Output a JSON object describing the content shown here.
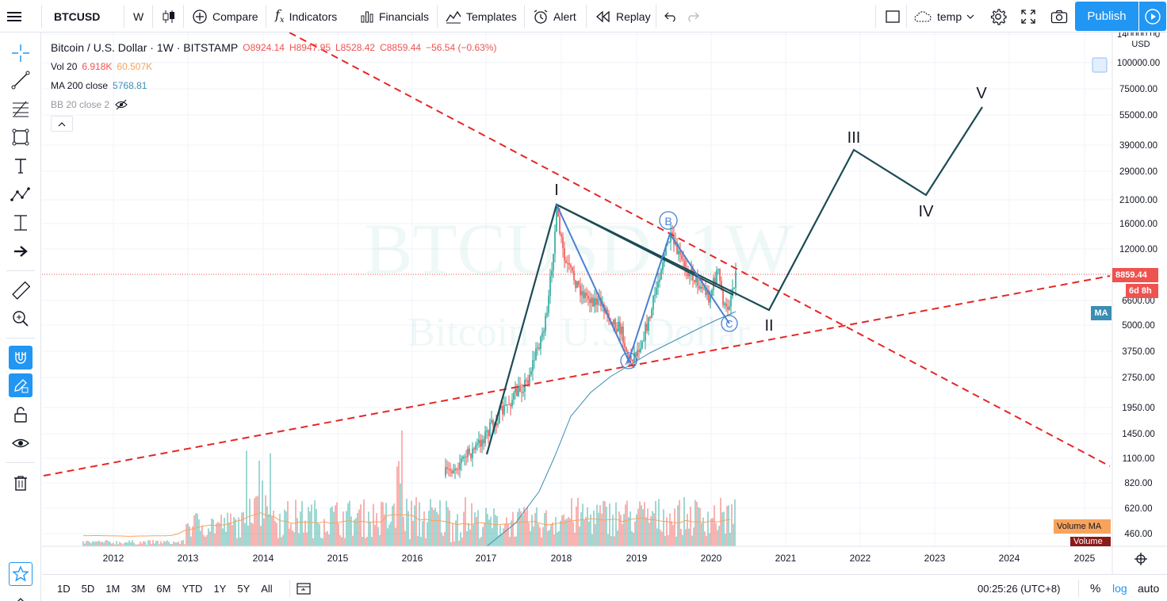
{
  "toolbar": {
    "symbol": "BTCUSD",
    "interval": "W",
    "compare": "Compare",
    "indicators": "Indicators",
    "financials": "Financials",
    "templates": "Templates",
    "alert": "Alert",
    "replay": "Replay",
    "layout_name": "temp",
    "publish": "Publish"
  },
  "legend": {
    "title": "Bitcoin / U.S. Dollar · 1W · BITSTAMP",
    "open": "O8924.14",
    "high": "H8947.95",
    "low": "L8528.42",
    "close": "C8859.44",
    "change": "−56.54 (−0.63%)",
    "vol_label": "Vol 20",
    "vol_value": "6.918K",
    "vol_ma": "60.507K",
    "ma_label": "MA 200 close",
    "ma_value": "5768.81",
    "bb_label": "BB 20 close 2"
  },
  "watermark": {
    "line1": "BTCUSD, 1W",
    "line2": "Bitcoin / U.S. Dollar"
  },
  "price_axis": {
    "currency": "USD",
    "ticks": [
      "140000.00",
      "100000.00",
      "75000.00",
      "55000.00",
      "39000.00",
      "29000.00",
      "21000.00",
      "16000.00",
      "12000.00",
      "6600.00",
      "5000.00",
      "3750.00",
      "2750.00",
      "1950.00",
      "1450.00",
      "1100.00",
      "820.00",
      "620.00",
      "460.00"
    ],
    "last_price": "8859.44",
    "countdown": "6d 8h",
    "ma_tag": "MA",
    "volume_ma_tag": "Volume MA",
    "volume_tag": "Volume"
  },
  "time_axis": [
    "2012",
    "2013",
    "2014",
    "2015",
    "2016",
    "2017",
    "2018",
    "2019",
    "2020",
    "2021",
    "2022",
    "2023",
    "2024",
    "2025"
  ],
  "waves": {
    "w1": "I",
    "w2": "II",
    "w3": "III",
    "w4": "IV",
    "w5": "V",
    "a": "A",
    "b": "B",
    "c": "C"
  },
  "bottom": {
    "ranges": [
      "1D",
      "5D",
      "1M",
      "3M",
      "6M",
      "YTD",
      "1Y",
      "5Y",
      "All"
    ],
    "clock": "00:25:26 (UTC+8)",
    "percent": "%",
    "log": "log",
    "auto": "auto"
  },
  "colors": {
    "accent": "#2196f3",
    "down": "#ef5350",
    "up": "#26a69a",
    "wave": "#1b4b55",
    "abc": "#4a7fd4",
    "trend": "#e52626",
    "ma": "#3c8db3",
    "volma": "#f7a35c"
  }
}
